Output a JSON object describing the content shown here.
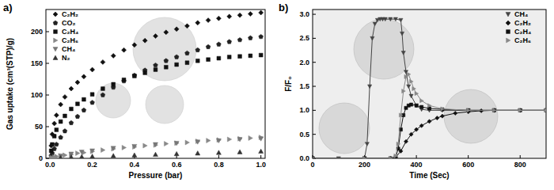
{
  "chart_data": [
    {
      "type": "scatter",
      "title": "a)",
      "x_label": "Pressure (bar)",
      "y_label": "Gas uptake (cm³(STP)/g)",
      "xlim": [
        -0.02,
        1.02
      ],
      "ylim": [
        0,
        235
      ],
      "xticks": [
        {
          "value": 0,
          "label": "0.0"
        },
        0.2,
        0.4,
        0.6,
        0.8,
        {
          "value": 1,
          "label": "1.0"
        }
      ],
      "yticks": [
        0,
        50,
        100,
        150,
        200
      ],
      "grid": false,
      "legend": "upper-left",
      "series": [
        {
          "name": "C₂H₂",
          "color": "#111111",
          "marker": "diamond",
          "x": [
            0.005,
            0.01,
            0.02,
            0.03,
            0.05,
            0.07,
            0.1,
            0.13,
            0.16,
            0.2,
            0.25,
            0.3,
            0.35,
            0.4,
            0.45,
            0.5,
            0.55,
            0.6,
            0.65,
            0.7,
            0.75,
            0.8,
            0.85,
            0.9,
            0.95,
            1.0
          ],
          "values": [
            20,
            38,
            55,
            68,
            85,
            97,
            110,
            120,
            129,
            140,
            152,
            162,
            171,
            179,
            186,
            193,
            199,
            204,
            209,
            214,
            218,
            221,
            224,
            226,
            228,
            230
          ]
        },
        {
          "name": "CO₂",
          "color": "#222222",
          "marker": "pentagon",
          "x": [
            0.005,
            0.01,
            0.02,
            0.03,
            0.05,
            0.07,
            0.1,
            0.13,
            0.16,
            0.2,
            0.25,
            0.3,
            0.35,
            0.4,
            0.45,
            0.5,
            0.55,
            0.6,
            0.65,
            0.7,
            0.75,
            0.8,
            0.85,
            0.9,
            0.95,
            1.0
          ],
          "values": [
            4,
            8,
            15,
            22,
            33,
            43,
            56,
            66,
            76,
            88,
            100,
            112,
            122,
            131,
            139,
            147,
            154,
            160,
            166,
            171,
            176,
            180,
            184,
            187,
            190,
            192
          ]
        },
        {
          "name": "C₂H₄",
          "color": "#111111",
          "marker": "square",
          "x": [
            0.005,
            0.01,
            0.02,
            0.03,
            0.05,
            0.07,
            0.1,
            0.13,
            0.16,
            0.2,
            0.25,
            0.3,
            0.35,
            0.4,
            0.45,
            0.5,
            0.55,
            0.6,
            0.65,
            0.7,
            0.75,
            0.8,
            0.85,
            0.9,
            0.95,
            1.0
          ],
          "values": [
            12,
            22,
            35,
            45,
            58,
            67,
            78,
            86,
            93,
            101,
            110,
            117,
            124,
            130,
            135,
            140,
            144,
            148,
            151,
            154,
            156,
            158,
            160,
            161,
            162,
            163
          ]
        },
        {
          "name": "C₂H₆",
          "color": "#888888",
          "marker": "triangle-right",
          "x": [
            0.005,
            0.01,
            0.02,
            0.03,
            0.05,
            0.07,
            0.1,
            0.13,
            0.16,
            0.2,
            0.25,
            0.3,
            0.35,
            0.4,
            0.45,
            0.5,
            0.55,
            0.6,
            0.65,
            0.7,
            0.75,
            0.8,
            0.85,
            0.9,
            0.95,
            1.0
          ],
          "values": [
            0.5,
            1,
            2,
            3,
            4,
            5,
            6,
            8,
            9,
            11,
            13,
            15,
            17,
            18,
            20,
            21,
            23,
            24,
            25,
            27,
            28,
            29,
            30,
            31,
            32,
            33
          ]
        },
        {
          "name": "CH₄",
          "color": "#777777",
          "marker": "triangle-down",
          "x": [
            0.05,
            0.1,
            0.15,
            0.2,
            0.3,
            0.4,
            0.5,
            0.6,
            0.7,
            0.8,
            0.9,
            1.0
          ],
          "values": [
            4,
            7,
            10,
            12,
            16,
            19,
            22,
            24,
            26,
            28,
            30,
            31
          ]
        },
        {
          "name": "N₂",
          "color": "#333333",
          "marker": "triangle-up",
          "x": [
            0.05,
            0.1,
            0.15,
            0.2,
            0.3,
            0.4,
            0.5,
            0.6,
            0.7,
            0.8,
            0.9,
            1.0
          ],
          "values": [
            1,
            2,
            2.5,
            3,
            4,
            5,
            6,
            7,
            8,
            9,
            10,
            11
          ]
        }
      ]
    },
    {
      "type": "line",
      "title": "b)",
      "x_label": "Time (Sec)",
      "y_label": "F/F₀",
      "xlim": [
        0,
        900
      ],
      "ylim": [
        0,
        3.1
      ],
      "xticks": [
        0,
        200,
        400,
        600,
        800
      ],
      "yticks": [
        {
          "value": 0,
          "label": "0.0"
        },
        0.5,
        {
          "value": 1,
          "label": "1.0"
        },
        1.5,
        {
          "value": 2,
          "label": "2.0"
        },
        2.5,
        {
          "value": 3,
          "label": "3.0"
        }
      ],
      "grid": false,
      "legend": "upper-right",
      "series": [
        {
          "name": "CH₄",
          "color": "#444444",
          "marker": "triangle-down",
          "x": [
            0,
            100,
            200,
            210,
            220,
            230,
            240,
            250,
            260,
            270,
            280,
            300,
            320,
            340,
            345,
            350,
            360,
            370,
            380,
            400,
            420,
            450,
            500,
            600,
            700,
            800,
            900
          ],
          "values": [
            0,
            0,
            0,
            0.3,
            1.5,
            2.5,
            2.8,
            2.88,
            2.9,
            2.9,
            2.9,
            2.9,
            2.9,
            2.88,
            2.6,
            2.2,
            1.8,
            1.5,
            1.3,
            1.1,
            1.02,
            1,
            1,
            1,
            1,
            1,
            1
          ]
        },
        {
          "name": "C₂H₂",
          "color": "#111111",
          "marker": "diamond",
          "x": [
            0,
            200,
            300,
            320,
            340,
            360,
            380,
            400,
            420,
            450,
            480,
            500,
            550,
            600,
            650,
            700,
            800,
            900
          ],
          "values": [
            0,
            0,
            0,
            0.02,
            0.15,
            0.35,
            0.5,
            0.6,
            0.68,
            0.77,
            0.84,
            0.88,
            0.94,
            0.97,
            0.99,
            1,
            1,
            1
          ]
        },
        {
          "name": "C₂H₄",
          "color": "#111111",
          "marker": "square",
          "x": [
            0,
            200,
            300,
            320,
            330,
            340,
            350,
            360,
            370,
            380,
            400,
            420,
            450,
            500,
            600,
            700,
            800,
            900
          ],
          "values": [
            0,
            0,
            0,
            0.02,
            0.2,
            0.6,
            0.9,
            1.05,
            1.1,
            1.12,
            1.1,
            1.07,
            1.04,
            1.02,
            1,
            1,
            1,
            1
          ]
        },
        {
          "name": "C₂H₆",
          "color": "#888888",
          "marker": "triangle-right",
          "x": [
            0,
            200,
            300,
            320,
            330,
            340,
            350,
            360,
            370,
            380,
            390,
            400,
            420,
            450,
            500,
            600,
            700,
            800,
            900
          ],
          "values": [
            0,
            0,
            0,
            0.05,
            0.3,
            0.9,
            1.4,
            1.7,
            1.75,
            1.6,
            1.45,
            1.35,
            1.2,
            1.1,
            1.03,
            1,
            1,
            1,
            1
          ]
        }
      ]
    }
  ]
}
